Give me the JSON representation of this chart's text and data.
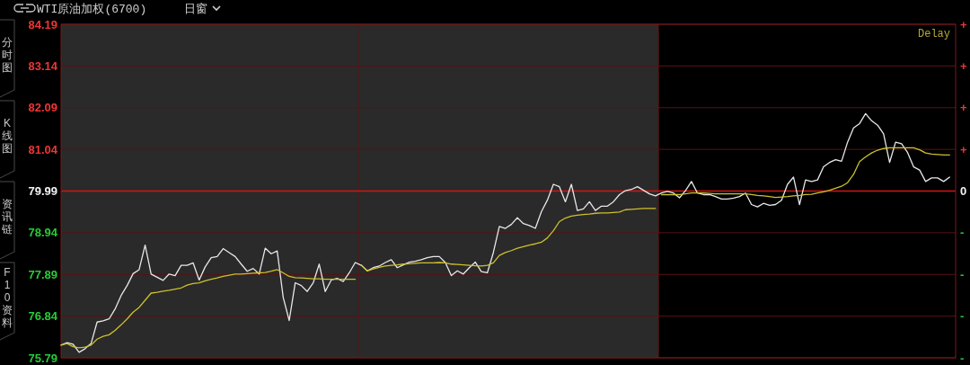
{
  "chart_data": {
    "type": "line",
    "title": "WTI原油加权(6700)",
    "subtitle": "日窗",
    "annotations": [
      "Delay",
      "分时图",
      "K线图",
      "资讯链",
      "F10资料",
      "+",
      "+",
      "+",
      "+",
      "0",
      "-",
      "-",
      "-",
      "-"
    ],
    "categories": [
      null,
      null,
      null,
      null,
      null,
      null,
      null,
      null,
      null,
      null,
      null,
      null,
      null,
      null,
      null,
      null,
      null,
      null,
      null,
      null,
      null,
      null,
      null,
      null,
      null,
      null,
      null,
      null,
      null,
      null,
      null,
      null,
      null,
      null,
      null,
      null,
      null,
      null,
      null,
      null,
      null,
      null,
      null,
      null,
      null,
      null,
      null,
      null,
      null,
      null,
      null,
      null,
      null,
      null,
      null,
      null,
      null,
      null,
      null,
      null,
      null,
      null,
      null,
      null,
      null,
      null,
      null,
      null,
      null,
      null,
      null,
      null,
      null,
      null,
      null,
      null,
      null,
      null,
      null,
      null,
      null,
      null,
      null,
      null,
      null,
      null,
      null,
      null,
      null,
      null,
      null,
      null,
      null,
      null,
      null,
      null,
      null,
      null,
      null,
      null,
      null,
      null,
      null,
      null,
      null,
      null,
      null,
      null,
      null,
      null,
      null,
      null,
      null,
      null,
      null,
      null,
      null,
      null,
      null,
      null,
      null,
      null,
      null,
      null,
      null,
      null,
      null,
      null,
      null,
      null,
      null,
      null,
      null,
      null,
      null,
      null,
      null,
      null,
      null,
      null,
      null,
      null,
      null,
      null,
      null,
      null,
      null,
      null,
      null,
      null
    ],
    "series": [
      {
        "color": "#e8e8e8",
        "values": [
          76.11,
          76.17,
          76.13,
          75.93,
          76.02,
          76.15,
          76.69,
          76.72,
          76.77,
          77.02,
          77.36,
          77.61,
          77.91,
          78.01,
          78.63,
          77.9,
          77.82,
          77.74,
          77.9,
          77.86,
          78.12,
          78.12,
          78.18,
          77.75,
          78.08,
          78.31,
          78.34,
          78.54,
          78.44,
          78.34,
          78.15,
          77.97,
          78.04,
          77.9,
          78.55,
          78.41,
          78.48,
          77.31,
          76.73,
          77.68,
          77.61,
          77.46,
          77.68,
          78.15,
          77.46,
          77.75,
          77.79,
          77.71,
          77.93,
          78.19,
          78.12,
          77.98,
          78.06,
          78.1,
          78.19,
          78.26,
          78.06,
          78.13,
          78.2,
          78.22,
          78.26,
          78.31,
          78.34,
          78.34,
          78.19,
          77.86,
          77.98,
          77.9,
          78.06,
          78.2,
          77.96,
          77.93,
          78.44,
          79.1,
          79.05,
          79.15,
          79.32,
          79.17,
          79.12,
          79.05,
          79.47,
          79.76,
          80.16,
          80.1,
          79.72,
          80.16,
          79.5,
          79.54,
          79.72,
          79.5,
          79.61,
          79.61,
          79.72,
          79.9,
          80.0,
          80.03,
          80.1,
          80.01,
          79.92,
          79.87,
          79.94,
          79.98,
          79.94,
          79.82,
          80.0,
          80.23,
          79.94,
          79.9,
          79.9,
          79.85,
          79.79,
          79.79,
          79.81,
          79.85,
          79.94,
          79.65,
          79.59,
          79.68,
          79.63,
          79.65,
          79.76,
          80.16,
          80.34,
          79.65,
          80.27,
          80.23,
          80.27,
          80.6,
          80.71,
          80.78,
          80.74,
          81.22,
          81.58,
          81.69,
          81.94,
          81.76,
          81.65,
          81.43,
          80.71,
          81.22,
          81.18,
          80.96,
          80.6,
          80.52,
          80.23,
          80.32,
          80.32,
          80.23,
          80.34,
          null
        ]
      },
      {
        "color": "#cfc02c",
        "values": [
          76.11,
          76.15,
          76.07,
          76.04,
          76.06,
          76.11,
          76.26,
          76.33,
          76.37,
          76.48,
          76.62,
          76.77,
          76.94,
          77.06,
          77.24,
          77.42,
          77.44,
          77.47,
          77.49,
          77.52,
          77.55,
          77.62,
          77.66,
          77.68,
          77.73,
          77.77,
          77.8,
          77.84,
          77.87,
          77.9,
          77.9,
          77.91,
          77.92,
          77.93,
          77.94,
          77.97,
          78.01,
          77.93,
          77.84,
          77.81,
          77.8,
          77.79,
          77.78,
          77.78,
          77.77,
          77.77,
          77.77,
          77.77,
          77.77,
          77.77,
          null,
          null,
          null,
          null,
          null,
          null,
          null,
          null,
          null,
          null,
          null,
          null,
          null,
          null,
          null,
          null,
          null,
          null,
          null,
          null,
          null,
          null,
          null,
          null,
          null,
          null,
          null,
          null,
          null,
          null,
          null,
          null,
          null,
          null,
          null,
          null,
          null,
          null,
          null,
          null,
          null,
          null,
          null,
          null,
          null,
          null,
          null,
          null,
          null,
          null,
          null,
          null,
          null,
          null,
          null,
          null,
          null,
          null,
          null,
          null,
          null,
          null,
          null,
          null,
          null,
          null,
          null,
          null,
          null,
          null,
          null,
          null,
          null,
          null,
          null,
          null,
          null,
          null,
          null,
          null,
          null,
          null,
          null,
          null,
          null,
          null,
          null,
          null,
          null,
          null,
          null,
          null,
          null,
          null,
          null,
          null,
          null,
          null,
          null,
          null
        ]
      },
      {
        "color": "#cfc02c",
        "values": [
          null,
          null,
          null,
          null,
          null,
          null,
          null,
          null,
          null,
          null,
          null,
          null,
          null,
          null,
          null,
          null,
          null,
          null,
          null,
          null,
          null,
          null,
          null,
          null,
          null,
          null,
          null,
          null,
          null,
          null,
          null,
          null,
          null,
          null,
          null,
          null,
          null,
          null,
          null,
          null,
          null,
          null,
          null,
          null,
          null,
          null,
          null,
          null,
          null,
          null,
          78.13,
          77.98,
          78.03,
          78.07,
          78.1,
          78.12,
          78.13,
          78.15,
          78.16,
          78.17,
          78.18,
          78.18,
          78.18,
          78.19,
          78.18,
          78.15,
          78.14,
          78.13,
          78.12,
          78.11,
          78.1,
          78.12,
          78.18,
          78.37,
          78.44,
          78.49,
          78.55,
          78.59,
          78.63,
          78.66,
          78.7,
          78.81,
          78.99,
          79.22,
          79.31,
          79.36,
          79.38,
          79.4,
          79.41,
          79.43,
          79.44,
          79.44,
          79.45,
          79.46,
          79.52,
          79.53,
          79.54,
          79.55,
          79.55,
          79.55,
          null,
          null,
          null,
          null,
          null,
          null,
          null,
          null,
          null,
          null,
          null,
          null,
          null,
          null,
          null,
          null,
          null,
          null,
          null,
          null,
          null,
          null,
          null,
          null,
          null,
          null,
          null,
          null,
          null,
          null,
          null,
          null,
          null,
          null,
          null,
          null,
          null,
          null,
          null,
          null,
          null,
          null,
          null,
          null,
          null,
          null,
          null,
          null,
          null,
          null
        ]
      },
      {
        "color": "#cfc02c",
        "values": [
          null,
          null,
          null,
          null,
          null,
          null,
          null,
          null,
          null,
          null,
          null,
          null,
          null,
          null,
          null,
          null,
          null,
          null,
          null,
          null,
          null,
          null,
          null,
          null,
          null,
          null,
          null,
          null,
          null,
          null,
          null,
          null,
          null,
          null,
          null,
          null,
          null,
          null,
          null,
          null,
          null,
          null,
          null,
          null,
          null,
          null,
          null,
          null,
          null,
          null,
          null,
          null,
          null,
          null,
          null,
          null,
          null,
          null,
          null,
          null,
          null,
          null,
          null,
          null,
          null,
          null,
          null,
          null,
          null,
          null,
          null,
          null,
          null,
          null,
          null,
          null,
          null,
          null,
          null,
          null,
          null,
          null,
          null,
          null,
          null,
          null,
          null,
          null,
          null,
          null,
          null,
          null,
          null,
          null,
          null,
          null,
          null,
          null,
          null,
          null,
          79.9,
          79.9,
          79.9,
          79.9,
          79.92,
          79.94,
          79.94,
          79.94,
          79.93,
          79.92,
          79.92,
          79.92,
          79.92,
          79.92,
          79.92,
          79.9,
          79.88,
          79.87,
          79.85,
          79.83,
          79.84,
          79.85,
          79.87,
          79.88,
          79.9,
          79.91,
          79.94,
          79.97,
          80.01,
          80.06,
          80.11,
          80.2,
          80.41,
          80.73,
          80.85,
          80.95,
          81.02,
          81.06,
          81.08,
          81.08,
          81.08,
          81.08,
          81.08,
          81.03,
          80.95,
          80.92,
          80.91,
          80.9,
          80.9,
          null
        ]
      }
    ],
    "ylim": [
      75.79,
      84.19
    ],
    "yticks": [
      84.19,
      83.14,
      82.09,
      81.04,
      79.99,
      78.94,
      77.89,
      76.84,
      75.79
    ],
    "grid": "y",
    "ref_lines": [
      {
        "axis": "y",
        "value": 79.99,
        "color": "#d41414"
      }
    ]
  }
}
